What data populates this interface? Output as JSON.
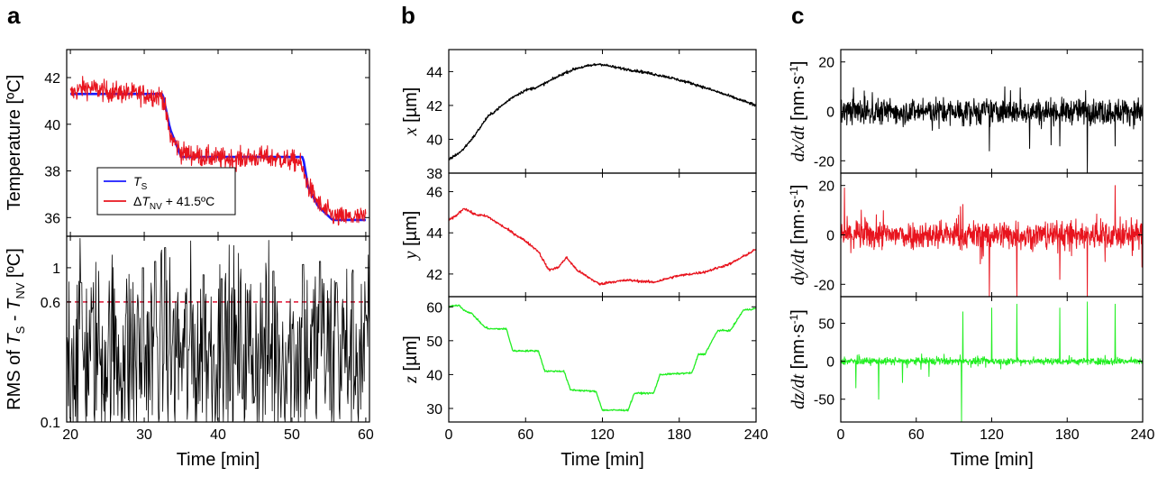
{
  "panel_labels": [
    "a",
    "b",
    "c"
  ],
  "colors": {
    "black": "#000000",
    "blue": "#1a1aff",
    "red": "#e8141e",
    "green": "#22ee22",
    "dash": "#e01030"
  },
  "chart_data": [
    {
      "id": "a-top",
      "type": "line",
      "ylabel": "Temperature [ºC]",
      "xlim": [
        19.5,
        60.5
      ],
      "ylim": [
        35.2,
        43.2
      ],
      "yticks": [
        36,
        38,
        40,
        42
      ],
      "legend": {
        "position": "bottom-left",
        "entries": [
          {
            "main": "T",
            "sub": "S",
            "suffix": "",
            "color": "#1a1aff"
          },
          {
            "main": "ΔT",
            "sub": "NV",
            "suffix": " + 41.5ºC",
            "color": "#e8141e"
          }
        ]
      },
      "series": [
        {
          "key": "TS",
          "color": "#1a1aff",
          "stroke": 2.6,
          "x": [
            20,
            32.5,
            33.5,
            35,
            45,
            51.5,
            52.2,
            53.5,
            55.5,
            60
          ],
          "y": [
            41.3,
            41.3,
            39.8,
            38.6,
            38.6,
            38.6,
            37.3,
            36.5,
            35.9,
            35.9
          ]
        },
        {
          "key": "dTNV",
          "color": "#e8141e",
          "stroke": 1.1,
          "noise": 0.22,
          "x": [
            20,
            22,
            25,
            29,
            32.5,
            33.5,
            35,
            38,
            42,
            46,
            51,
            52.3,
            54,
            56,
            60
          ],
          "y": [
            41.3,
            41.6,
            41.4,
            41.3,
            41.2,
            39.5,
            38.8,
            38.6,
            38.5,
            38.6,
            38.4,
            37.3,
            36.4,
            36.0,
            36.0
          ]
        }
      ]
    },
    {
      "id": "a-bottom",
      "type": "line",
      "ylabel_parts": [
        "RMS of ",
        "T",
        "S",
        " - ",
        "T",
        "NV",
        " [ºC]"
      ],
      "xlabel": "Time [min]",
      "xlim": [
        19.5,
        60.5
      ],
      "xticks": [
        20,
        30,
        40,
        50,
        60
      ],
      "ylim": [
        0.1,
        1.6
      ],
      "yscale": "log",
      "yticks": [
        0.1,
        0.6,
        1
      ],
      "ytick_labels": [
        "0.1",
        "0.6",
        "1"
      ],
      "threshold": 0.6,
      "series": [
        {
          "key": "rms",
          "color": "#000000",
          "kind": "rms",
          "peaks": [
            [
              21.5,
              0.8
            ],
            [
              29.8,
              1.0
            ],
            [
              31.5,
              1.1
            ],
            [
              32.8,
              1.35
            ],
            [
              38,
              0.9
            ],
            [
              40.5,
              0.85
            ],
            [
              47.5,
              0.95
            ],
            [
              51.5,
              1.05
            ],
            [
              53.8,
              1.1
            ],
            [
              56,
              0.8
            ]
          ]
        }
      ]
    },
    {
      "id": "b-x",
      "type": "line",
      "ylabel_var": "x",
      "ylabel_unit": " [µm]",
      "xlim": [
        0,
        240
      ],
      "ylim": [
        38,
        45.3
      ],
      "yticks": [
        38,
        40,
        42,
        44
      ],
      "series": [
        {
          "key": "x",
          "color": "#000000",
          "noise": 0.04,
          "x": [
            0,
            10,
            20,
            30,
            40,
            50,
            60,
            70,
            80,
            90,
            100,
            110,
            118,
            130,
            150,
            170,
            190,
            210,
            225,
            240
          ],
          "y": [
            38.8,
            39.3,
            40.2,
            41.3,
            41.9,
            42.5,
            42.9,
            43.1,
            43.5,
            43.9,
            44.2,
            44.35,
            44.45,
            44.25,
            44.0,
            43.7,
            43.3,
            42.8,
            42.4,
            42.0
          ]
        }
      ]
    },
    {
      "id": "b-y",
      "type": "line",
      "ylabel_var": "y",
      "ylabel_unit": " [µm]",
      "xlim": [
        0,
        240
      ],
      "ylim": [
        40.9,
        46.9
      ],
      "yticks": [
        42,
        44,
        46
      ],
      "series": [
        {
          "key": "y",
          "color": "#e8141e",
          "noise": 0.03,
          "x": [
            0,
            5,
            12,
            20,
            30,
            40,
            50,
            60,
            70,
            78,
            85,
            92,
            100,
            110,
            118,
            125,
            140,
            160,
            178,
            200,
            220,
            240
          ],
          "y": [
            44.6,
            44.8,
            45.2,
            44.9,
            44.8,
            44.4,
            44.0,
            43.6,
            43.1,
            42.2,
            42.3,
            42.8,
            42.2,
            41.8,
            41.5,
            41.6,
            41.7,
            41.6,
            41.9,
            42.1,
            42.5,
            43.2
          ]
        }
      ]
    },
    {
      "id": "b-z",
      "type": "line",
      "ylabel_var": "z",
      "ylabel_unit": " [µm]",
      "xlabel": "Time [min]",
      "xlim": [
        0,
        240
      ],
      "xticks": [
        0,
        60,
        120,
        180,
        240
      ],
      "ylim": [
        26,
        63
      ],
      "yticks": [
        30,
        40,
        50,
        60
      ],
      "series": [
        {
          "key": "z",
          "color": "#22ee22",
          "noise": 0.12,
          "x": [
            0,
            8,
            12,
            18,
            28,
            32,
            45,
            50,
            70,
            75,
            90,
            95,
            115,
            120,
            140,
            145,
            160,
            165,
            190,
            195,
            200,
            210,
            220,
            230,
            240
          ],
          "y": [
            60,
            60.5,
            59,
            58,
            54,
            53.5,
            53.5,
            47,
            47,
            41,
            41,
            35.5,
            35,
            29.5,
            29.5,
            34.5,
            34.5,
            40,
            40.5,
            46,
            46,
            53,
            53,
            59,
            59.5
          ]
        }
      ]
    },
    {
      "id": "c-x",
      "type": "line",
      "ylabel_var": "dx/dt",
      "ylabel_unit": " [nm·s",
      "xlim": [
        0,
        240
      ],
      "ylim": [
        -25,
        25
      ],
      "yticks": [
        -20,
        0,
        20
      ],
      "series": [
        {
          "key": "dxdt",
          "color": "#000000",
          "kind": "noise",
          "amp": 4.5,
          "spikes": [
            [
              118,
              -16
            ],
            [
              150,
              -15
            ],
            [
              174,
              -14
            ],
            [
              196,
              -25
            ],
            [
              218,
              -14
            ]
          ]
        }
      ]
    },
    {
      "id": "c-y",
      "type": "line",
      "ylabel_var": "dy/dt",
      "ylabel_unit": " [nm·s",
      "xlim": [
        0,
        240
      ],
      "ylim": [
        -25,
        25
      ],
      "yticks": [
        -20,
        0,
        20
      ],
      "series": [
        {
          "key": "dydt",
          "color": "#e8141e",
          "kind": "noise",
          "amp": 5,
          "spikes": [
            [
              3,
              19
            ],
            [
              118,
              -25
            ],
            [
              140,
              -25
            ],
            [
              174,
              -18
            ],
            [
              196,
              -25
            ],
            [
              218,
              20
            ]
          ]
        }
      ]
    },
    {
      "id": "c-z",
      "type": "line",
      "ylabel_var": "dz/dt",
      "ylabel_unit": " [nm·s",
      "xlabel": "Time [min]",
      "xlim": [
        0,
        240
      ],
      "xticks": [
        0,
        60,
        120,
        180,
        240
      ],
      "ylim": [
        -80,
        85
      ],
      "yticks": [
        -50,
        0,
        50
      ],
      "series": [
        {
          "key": "dzdt",
          "color": "#22ee22",
          "kind": "noise",
          "amp": 4,
          "spikes": [
            [
              12,
              -35
            ],
            [
              30,
              -50
            ],
            [
              49,
              -28
            ],
            [
              70,
              -20
            ],
            [
              96,
              -80
            ],
            [
              97,
              65
            ],
            [
              120,
              70
            ],
            [
              140,
              75
            ],
            [
              174,
              70
            ],
            [
              196,
              78
            ],
            [
              218,
              75
            ]
          ]
        }
      ]
    }
  ]
}
